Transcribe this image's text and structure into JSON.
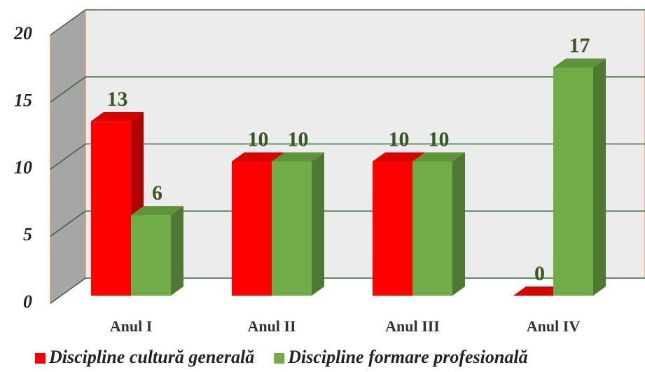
{
  "chart_data": {
    "type": "bar3d",
    "categories": [
      "Anul  I",
      "Anul  II",
      "Anul III",
      "Anul IV"
    ],
    "series": [
      {
        "name": "Discipline cultură generală",
        "color": "#ff0000",
        "values": [
          13,
          10,
          10,
          0
        ]
      },
      {
        "name": "Discipline formare profesională",
        "color": "#70ad47",
        "values": [
          6,
          10,
          10,
          17
        ]
      }
    ],
    "ylim": [
      0,
      20
    ],
    "yticks": [
      0,
      5,
      10,
      15,
      20
    ],
    "grid": true,
    "legend": "bottom"
  }
}
